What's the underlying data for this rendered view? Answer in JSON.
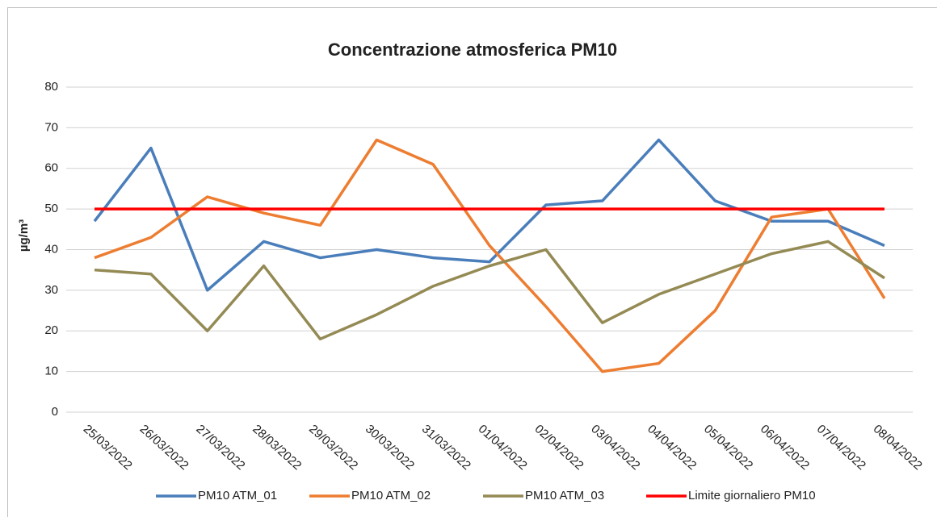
{
  "chart_data": {
    "type": "line",
    "title": "Concentrazione atmosferica PM10",
    "y_label": "µg/m³",
    "categories": [
      "25/03/2022",
      "26/03/2022",
      "27/03/2022",
      "28/03/2022",
      "29/03/2022",
      "30/03/2022",
      "31/03/2022",
      "01/04/2022",
      "02/04/2022",
      "03/04/2022",
      "04/04/2022",
      "05/04/2022",
      "06/04/2022",
      "07/04/2022",
      "08/04/2022"
    ],
    "series": [
      {
        "name": "PM10 ATM_01",
        "color": "#4a7ebb",
        "values": [
          47,
          65,
          30,
          42,
          38,
          40,
          38,
          37,
          51,
          52,
          67,
          52,
          47,
          47,
          41
        ]
      },
      {
        "name": "PM10 ATM_02",
        "color": "#ed7d31",
        "values": [
          38,
          43,
          53,
          49,
          46,
          67,
          61,
          41,
          26,
          10,
          12,
          25,
          48,
          50,
          28
        ]
      },
      {
        "name": "PM10 ATM_03",
        "color": "#948a54",
        "values": [
          35,
          34,
          20,
          36,
          18,
          24,
          31,
          36,
          40,
          22,
          29,
          34,
          39,
          42,
          33
        ]
      },
      {
        "name": "Limite giornaliero PM10",
        "color": "#ff0000",
        "values": [
          50,
          50,
          50,
          50,
          50,
          50,
          50,
          50,
          50,
          50,
          50,
          50,
          50,
          50,
          50
        ]
      }
    ],
    "ylim": [
      0,
      80
    ],
    "yticks": [
      0,
      10,
      20,
      30,
      40,
      50,
      60,
      70,
      80
    ],
    "grid": true,
    "legend": "bottom"
  }
}
